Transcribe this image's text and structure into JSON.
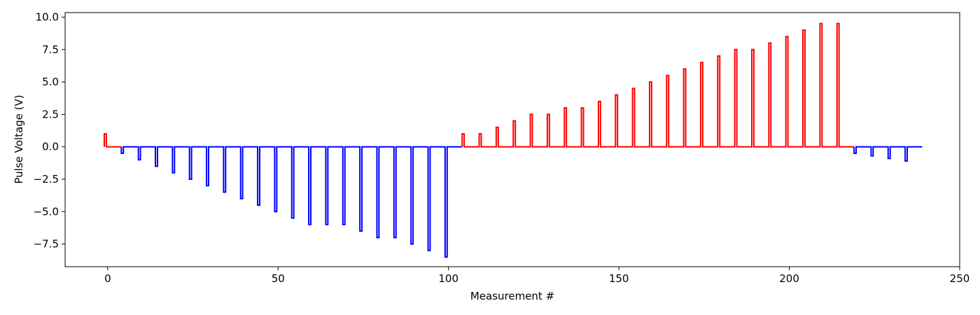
{
  "chart_data": {
    "type": "line",
    "title": "",
    "xlabel": "Measurement #",
    "ylabel": "Pulse Voltage (V)",
    "xlim": [
      -12.5,
      250
    ],
    "ylim": [
      -9.25,
      10.35
    ],
    "xticks": [
      0,
      50,
      100,
      150,
      200,
      250
    ],
    "yticks": [
      -7.5,
      -5.0,
      -2.5,
      0.0,
      2.5,
      5.0,
      7.5,
      10.0
    ],
    "xtick_labels": [
      "0",
      "50",
      "100",
      "150",
      "200",
      "250"
    ],
    "ytick_labels": [
      "−7.5",
      "−5.0",
      "−2.5",
      "0.0",
      "2.5",
      "5.0",
      "7.5",
      "10.0"
    ],
    "grid": false,
    "pulse_period": 5,
    "pulse_width": 0.6,
    "series": [
      {
        "color": "#ff0000",
        "start": -1,
        "end": 4,
        "pulse_x": [
          -1
        ],
        "pulse_v": [
          1.0
        ]
      },
      {
        "color": "#0000ff",
        "start": 4,
        "end": 104,
        "pulse_x": [
          4,
          9,
          14,
          19,
          24,
          29,
          34,
          39,
          44,
          49,
          54,
          59,
          64,
          69,
          74,
          79,
          84,
          89,
          94,
          99
        ],
        "pulse_v": [
          -0.5,
          -1.0,
          -1.5,
          -2.0,
          -2.5,
          -3.0,
          -3.5,
          -4.0,
          -4.5,
          -5.0,
          -5.5,
          -6.0,
          -6.0,
          -6.0,
          -6.5,
          -7.0,
          -7.0,
          -7.5,
          -8.0,
          -8.5
        ]
      },
      {
        "color": "#ff0000",
        "start": 104,
        "end": 219,
        "pulse_x": [
          104,
          109,
          114,
          119,
          124,
          129,
          134,
          139,
          144,
          149,
          154,
          159,
          164,
          169,
          174,
          179,
          184,
          189,
          194,
          199,
          204,
          209,
          214
        ],
        "pulse_v": [
          1.0,
          1.0,
          1.5,
          2.0,
          2.5,
          2.5,
          3.0,
          3.0,
          3.5,
          4.0,
          4.5,
          5.0,
          5.5,
          6.0,
          6.5,
          7.0,
          7.5,
          7.5,
          8.0,
          8.5,
          9.0,
          9.5,
          9.5
        ]
      },
      {
        "color": "#0000ff",
        "start": 219,
        "end": 239,
        "pulse_x": [
          219,
          224,
          229,
          234
        ],
        "pulse_v": [
          -0.5,
          -0.7,
          -0.9,
          -1.1
        ]
      }
    ]
  }
}
